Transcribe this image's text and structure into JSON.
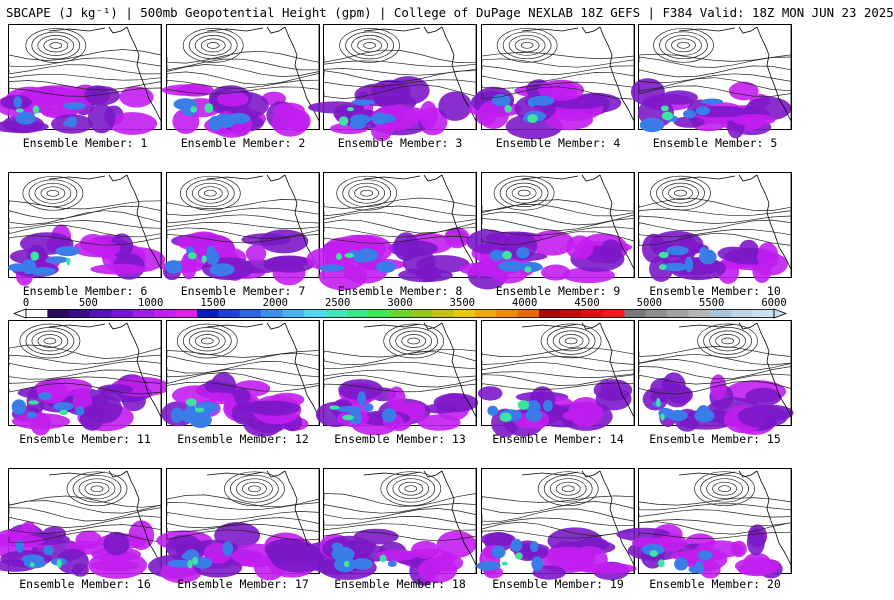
{
  "title": "SBCAPE (J kg⁻¹) | 500mb Geopotential Height (gpm) | College of DuPage NEXLAB 18Z GEFS | F384 Valid: 18Z MON JUN 23 2025",
  "members": [
    {
      "label": "Ensemble Member: 1"
    },
    {
      "label": "Ensemble Member: 2"
    },
    {
      "label": "Ensemble Member: 3"
    },
    {
      "label": "Ensemble Member: 4"
    },
    {
      "label": "Ensemble Member: 5"
    },
    {
      "label": "Ensemble Member: 6"
    },
    {
      "label": "Ensemble Member: 7"
    },
    {
      "label": "Ensemble Member: 8"
    },
    {
      "label": "Ensemble Member: 9"
    },
    {
      "label": "Ensemble Member: 10"
    },
    {
      "label": "Ensemble Member: 11"
    },
    {
      "label": "Ensemble Member: 12"
    },
    {
      "label": "Ensemble Member: 13"
    },
    {
      "label": "Ensemble Member: 14"
    },
    {
      "label": "Ensemble Member: 15"
    },
    {
      "label": "Ensemble Member: 16"
    },
    {
      "label": "Ensemble Member: 17"
    },
    {
      "label": "Ensemble Member: 18"
    },
    {
      "label": "Ensemble Member: 19"
    },
    {
      "label": "Ensemble Member: 20"
    }
  ],
  "colorbar": {
    "ticks": [
      "0",
      "500",
      "1000",
      "1500",
      "2000",
      "2500",
      "3000",
      "3500",
      "4000",
      "4500",
      "5000",
      "5500",
      "6000"
    ],
    "colors": [
      "#ffffff",
      "#2a0a63",
      "#3d0c8f",
      "#5a10b8",
      "#7c16d8",
      "#a01ee8",
      "#c41ff0",
      "#e020e8",
      "#0a1dbd",
      "#1e40d8",
      "#2f66e8",
      "#3e8ef0",
      "#47b2f2",
      "#4fd8f0",
      "#40e6c0",
      "#36e88a",
      "#3ee858",
      "#6ad62a",
      "#98c81c",
      "#c4c010",
      "#e8c808",
      "#f0a808",
      "#f08808",
      "#e86808",
      "#a80a0a",
      "#c40c0c",
      "#e01010",
      "#f01818",
      "#7a7a7a",
      "#8e8e8e",
      "#a2a2a2",
      "#b6b6b6",
      "#a8c4d8",
      "#bcd4e6",
      "#c8e0f0"
    ]
  },
  "cape_colors": {
    "low": "#7b18c8",
    "mid": "#c21ef0",
    "high": "#3a7de8",
    "peak": "#3ce4a0"
  }
}
